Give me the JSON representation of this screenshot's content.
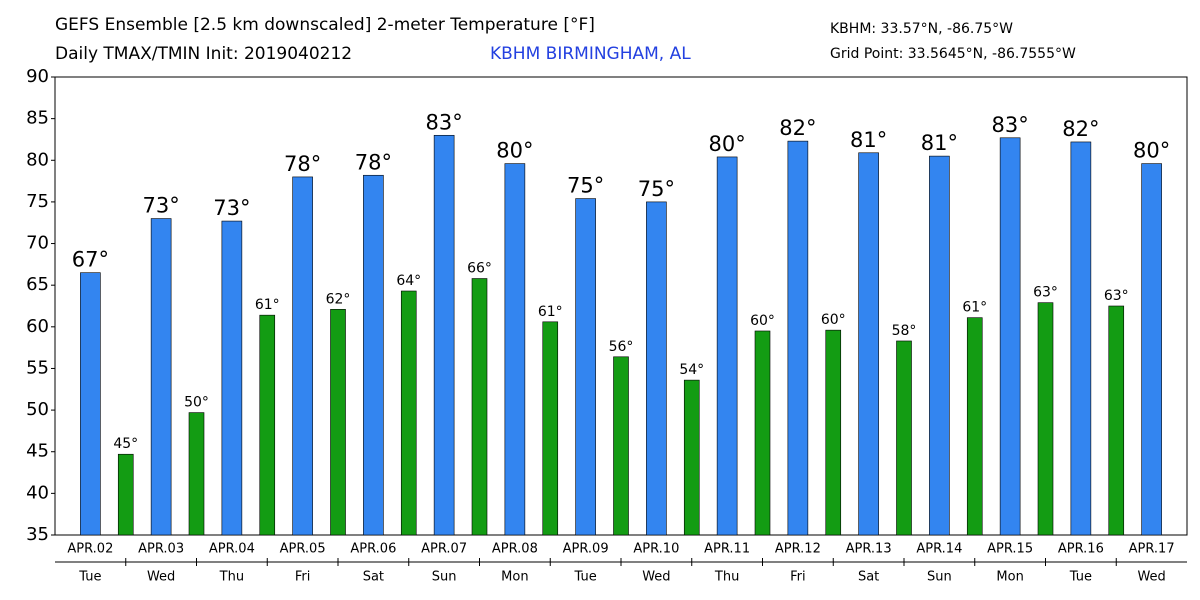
{
  "chart_data": {
    "type": "bar",
    "title": "GEFS Ensemble [2.5 km downscaled] 2-meter Temperature [°F]",
    "subtitle": "Daily TMAX/TMIN Init: 2019040212",
    "location": "KBHM BIRMINGHAM, AL",
    "station": "KBHM: 33.57°N, -86.75°W",
    "grid_point": "Grid Point: 33.5645°N, -86.7555°W",
    "categories": [
      "APR.02",
      "APR.03",
      "APR.04",
      "APR.05",
      "APR.06",
      "APR.07",
      "APR.08",
      "APR.09",
      "APR.10",
      "APR.11",
      "APR.12",
      "APR.13",
      "APR.14",
      "APR.15",
      "APR.16",
      "APR.17"
    ],
    "weekdays": [
      "Tue",
      "Wed",
      "Thu",
      "Fri",
      "Sat",
      "Sun",
      "Mon",
      "Tue",
      "Wed",
      "Thu",
      "Fri",
      "Sat",
      "Sun",
      "Mon",
      "Tue",
      "Wed"
    ],
    "series": [
      {
        "color": "#3385f0",
        "values": [
          66.5,
          73,
          72.7,
          78,
          78.2,
          83,
          79.6,
          75.4,
          75,
          80.4,
          82.3,
          80.9,
          80.5,
          82.7,
          82.2,
          79.6
        ],
        "value_labels": [
          "67°",
          "73°",
          "73°",
          "78°",
          "78°",
          "83°",
          "80°",
          "75°",
          "75°",
          "80°",
          "82°",
          "81°",
          "81°",
          "83°",
          "82°",
          "80°"
        ]
      },
      {
        "color": "#139c13",
        "values": [
          44.7,
          49.7,
          61.4,
          62.1,
          64.3,
          65.8,
          60.6,
          56.4,
          53.6,
          59.5,
          59.6,
          58.3,
          61.1,
          62.9,
          62.5,
          null
        ],
        "value_labels": [
          "45°",
          "50°",
          "61°",
          "62°",
          "64°",
          "66°",
          "61°",
          "56°",
          "54°",
          "60°",
          "60°",
          "58°",
          "61°",
          "63°",
          "63°",
          null
        ]
      }
    ],
    "ylim": [
      35,
      90
    ],
    "yticks": [
      35,
      40,
      45,
      50,
      55,
      60,
      65,
      70,
      75,
      80,
      85,
      90
    ]
  }
}
